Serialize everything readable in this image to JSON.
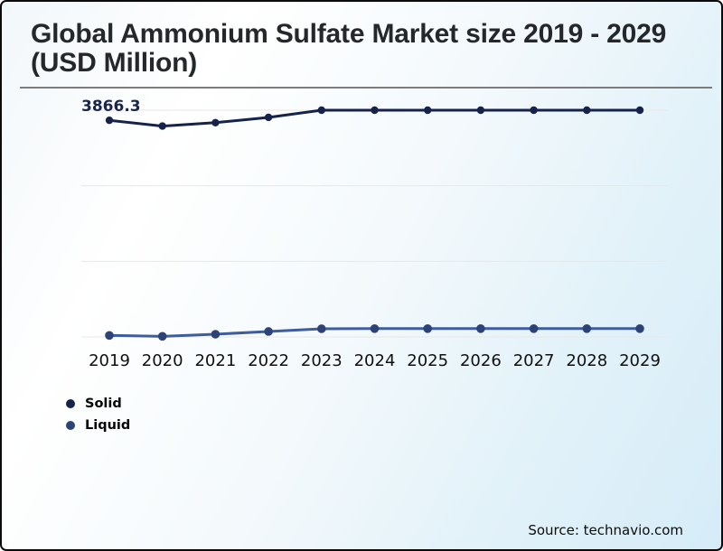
{
  "title": "Global Ammonium Sulfate Market size 2019 - 2029 (USD Million)",
  "footer": {
    "source": "Source: technavio.com"
  },
  "chart_data": {
    "type": "line",
    "title": "Global Ammonium Sulfate Market size 2019 - 2029 (USD Million)",
    "categories": [
      "2019",
      "2020",
      "2021",
      "2022",
      "2023",
      "2024",
      "2025",
      "2026",
      "2027",
      "2028",
      "2029"
    ],
    "series": [
      {
        "name": "Solid",
        "color": "#15234b",
        "marker_color": "#15234b",
        "values": [
          3866.3,
          3790,
          3835,
          3905,
          4000,
          4000,
          4000,
          4000,
          4000,
          4000,
          4000
        ]
      },
      {
        "name": "Liquid",
        "color": "#3f5d9c",
        "marker_color": "#2d4377",
        "values": [
          1020,
          1008,
          1036,
          1072,
          1108,
          1110,
          1110,
          1110,
          1110,
          1110,
          1110
        ]
      }
    ],
    "annotation": {
      "text": "3866.3",
      "series_index": 0,
      "point_index": 0,
      "color": "#17264f"
    },
    "y_axis": {
      "visible": false,
      "gridline_values": [
        4000,
        3000,
        2000,
        1000
      ],
      "ylim": [
        900,
        4100
      ]
    },
    "x_axis": {
      "tick_color": "#101010"
    },
    "legend": {
      "position": "bottom-left",
      "entries": [
        "Solid",
        "Liquid"
      ]
    },
    "grid": "horizontal",
    "gridline_color": "#ebe7e3"
  }
}
